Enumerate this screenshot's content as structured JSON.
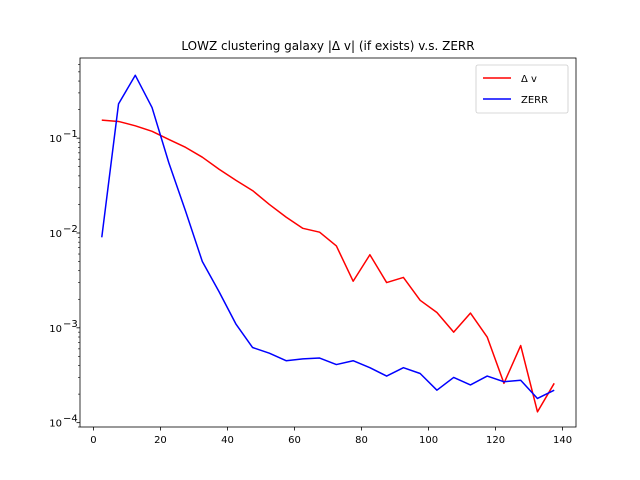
{
  "chart_data": {
    "type": "line",
    "title": "LOWZ clustering galaxy |Δ v| (if exists) v.s. ZERR",
    "xlabel": "",
    "ylabel": "",
    "y_scale": "log",
    "xlim": [
      -4,
      144
    ],
    "ylim": [
      9e-05,
      0.7
    ],
    "x_ticks": [
      0,
      20,
      40,
      60,
      80,
      100,
      120,
      140
    ],
    "x_tick_labels": [
      "0",
      "20",
      "40",
      "60",
      "80",
      "100",
      "120",
      "140"
    ],
    "y_ticks": [
      0.0001,
      0.001,
      0.01,
      0.1
    ],
    "y_tick_labels": [
      "10",
      "10",
      "10",
      "10"
    ],
    "y_tick_exponents": [
      "−4",
      "−3",
      "−2",
      "−1"
    ],
    "legend_position": "upper-right",
    "grid": false,
    "x": [
      2.5,
      7.5,
      12.5,
      17.5,
      22.5,
      27.5,
      32.5,
      37.5,
      42.5,
      47.5,
      52.5,
      57.5,
      62.5,
      67.5,
      72.5,
      77.5,
      82.5,
      87.5,
      92.5,
      97.5,
      102.5,
      107.5,
      112.5,
      117.5,
      122.5,
      127.5,
      132.5,
      137.5
    ],
    "series": [
      {
        "name": "Δ v",
        "color": "#ff0000",
        "values": [
          0.155,
          0.15,
          0.135,
          0.118,
          0.097,
          0.08,
          0.063,
          0.047,
          0.036,
          0.028,
          0.02,
          0.0147,
          0.0112,
          0.0102,
          0.0073,
          0.0031,
          0.0059,
          0.003,
          0.0034,
          0.00195,
          0.00145,
          0.0009,
          0.00143,
          0.0008,
          0.00026,
          0.00065,
          0.00013,
          0.00026
        ]
      },
      {
        "name": "ZERR",
        "color": "#0000ff",
        "values": [
          0.009,
          0.23,
          0.46,
          0.21,
          0.055,
          0.017,
          0.005,
          0.0024,
          0.0011,
          0.00062,
          0.00054,
          0.00045,
          0.00047,
          0.00048,
          0.00041,
          0.00045,
          0.00038,
          0.00031,
          0.00038,
          0.00033,
          0.00022,
          0.0003,
          0.00025,
          0.00031,
          0.00027,
          0.00028,
          0.00018,
          0.00022
        ]
      }
    ]
  }
}
